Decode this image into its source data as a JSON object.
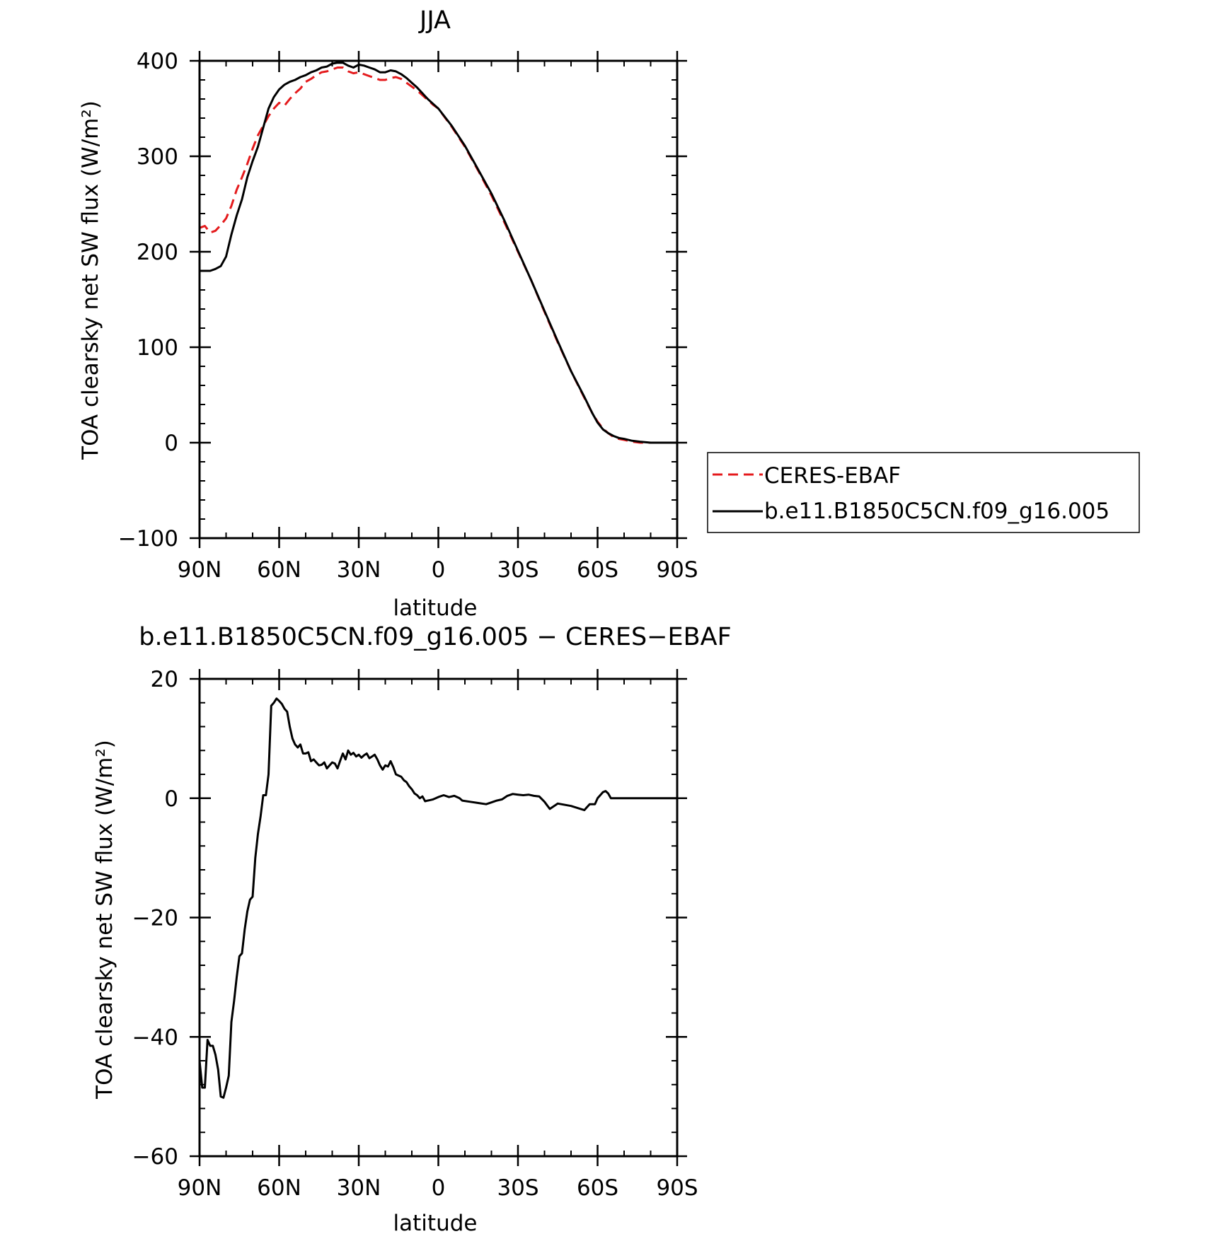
{
  "colors": {
    "background": "#ffffff",
    "axes": "#000000",
    "ceres": "#e41a1c",
    "model": "#000000"
  },
  "chart_data": [
    {
      "type": "line",
      "title": "JJA",
      "xlabel": "latitude",
      "ylabel": "TOA clearsky net SW flux (W/m²)",
      "xticks": [
        "90N",
        "60N",
        "30N",
        "0",
        "30S",
        "60S",
        "90S"
      ],
      "xtick_values": [
        90,
        60,
        30,
        0,
        -30,
        -60,
        -90
      ],
      "xlim": [
        90,
        -90
      ],
      "ylim": [
        -100,
        400
      ],
      "yticks": [
        -100,
        0,
        100,
        200,
        300,
        400
      ],
      "grid": false,
      "legend_position": "right",
      "series": [
        {
          "name": "CERES-EBAF",
          "color": "#e41a1c",
          "style": "dashed",
          "x": [
            90,
            88,
            86,
            84,
            82,
            80,
            78,
            76,
            74,
            72,
            70,
            68,
            66,
            64,
            62,
            60,
            58,
            56,
            54,
            52,
            50,
            48,
            46,
            44,
            42,
            40,
            38,
            36,
            34,
            32,
            30,
            28,
            26,
            24,
            22,
            20,
            18,
            16,
            14,
            12,
            10,
            8,
            6,
            4,
            2,
            0,
            -5,
            -10,
            -15,
            -20,
            -25,
            -30,
            -35,
            -40,
            -45,
            -50,
            -55,
            -58,
            -60,
            -62,
            -64,
            -66,
            -68,
            -70,
            -73,
            -76,
            -80,
            -85,
            -90
          ],
          "y": [
            225,
            227,
            220,
            222,
            228,
            235,
            248,
            265,
            278,
            292,
            308,
            322,
            332,
            342,
            350,
            356,
            353,
            360,
            366,
            371,
            378,
            381,
            385,
            388,
            389,
            391,
            393,
            393,
            389,
            387,
            388,
            386,
            384,
            382,
            380,
            380,
            382,
            383,
            381,
            377,
            373,
            369,
            364,
            359,
            354,
            350,
            331,
            310,
            285,
            259,
            230,
            200,
            170,
            137,
            105,
            75,
            47,
            31,
            22,
            15,
            10,
            6,
            4,
            3,
            1,
            0,
            0,
            0,
            0
          ]
        },
        {
          "name": "b.e11.B1850C5CN.f09_g16.005",
          "color": "#000000",
          "style": "solid",
          "x": [
            90,
            88,
            86,
            84,
            82,
            80,
            78,
            76,
            74,
            72,
            70,
            68,
            66,
            64,
            62,
            60,
            58,
            56,
            54,
            52,
            50,
            48,
            46,
            44,
            42,
            40,
            38,
            36,
            34,
            32,
            30,
            28,
            26,
            24,
            22,
            20,
            18,
            16,
            14,
            12,
            10,
            8,
            6,
            4,
            2,
            0,
            -5,
            -10,
            -15,
            -20,
            -25,
            -30,
            -35,
            -40,
            -45,
            -50,
            -55,
            -58,
            -60,
            -62,
            -64,
            -66,
            -68,
            -70,
            -73,
            -76,
            -80,
            -85,
            -90
          ],
          "y": [
            180,
            180,
            180,
            182,
            185,
            195,
            218,
            238,
            255,
            278,
            295,
            310,
            330,
            350,
            362,
            370,
            375,
            378,
            380,
            383,
            385,
            388,
            390,
            393,
            394,
            397,
            398,
            398,
            395,
            393,
            396,
            395,
            393,
            391,
            388,
            388,
            390,
            389,
            386,
            382,
            377,
            372,
            366,
            360,
            355,
            350,
            332,
            311,
            286,
            261,
            232,
            201,
            170,
            138,
            106,
            75,
            48,
            31,
            21,
            14,
            10,
            7,
            5,
            4,
            2,
            1,
            0,
            0,
            0
          ]
        }
      ]
    },
    {
      "type": "line",
      "title": "b.e11.B1850C5CN.f09_g16.005 − CERES−EBAF",
      "xlabel": "latitude",
      "ylabel": "TOA clearsky net SW flux (W/m²)",
      "xticks": [
        "90N",
        "60N",
        "30N",
        "0",
        "30S",
        "60S",
        "90S"
      ],
      "xtick_values": [
        90,
        60,
        30,
        0,
        -30,
        -60,
        -90
      ],
      "xlim": [
        90,
        -90
      ],
      "ylim": [
        -60,
        20
      ],
      "yticks": [
        -60,
        -40,
        -20,
        0,
        20
      ],
      "grid": false,
      "series": [
        {
          "color": "#000000",
          "style": "solid",
          "x": [
            90,
            89,
            88,
            87,
            86,
            85,
            84,
            83,
            82,
            81,
            80,
            79,
            78,
            77,
            76,
            75,
            74,
            73,
            72,
            71,
            70,
            69,
            68,
            67,
            66,
            65,
            64,
            63,
            62,
            61,
            60,
            59,
            58,
            57,
            56,
            55,
            54,
            53,
            52,
            51,
            50,
            49,
            48,
            47,
            46,
            45,
            44,
            43,
            42,
            41,
            40,
            39,
            38,
            37,
            36,
            35,
            34,
            33,
            32,
            31,
            30,
            29,
            28,
            27,
            26,
            25,
            24,
            23,
            22,
            21,
            20,
            19,
            18,
            17,
            16,
            15,
            14,
            13,
            12,
            11,
            10,
            9,
            8,
            7,
            6,
            5,
            4,
            3,
            2,
            1,
            0,
            -2,
            -4,
            -6,
            -8,
            -9,
            -12,
            -15,
            -18,
            -20,
            -22,
            -24,
            -26,
            -28,
            -30,
            -32,
            -34,
            -36,
            -38,
            -40,
            -42,
            -45,
            -50,
            -55,
            -57,
            -59,
            -60,
            -61,
            -62,
            -63,
            -64,
            -65,
            -66,
            -68,
            -70,
            -72,
            -74,
            -76,
            -78,
            -80,
            -85,
            -90
          ],
          "y": [
            -44,
            -48.5,
            -48.5,
            -40.5,
            -41.5,
            -41.5,
            -43,
            -45.5,
            -50,
            -50.2,
            -48.5,
            -46.5,
            -37.5,
            -34,
            -30,
            -26.5,
            -26,
            -22,
            -19,
            -17,
            -16.5,
            -10,
            -6,
            -3,
            0.5,
            0.5,
            4,
            15.5,
            16,
            16.7,
            16.3,
            15.8,
            15,
            14.5,
            12,
            10,
            9,
            8.5,
            9,
            7.5,
            7.5,
            7.7,
            6.2,
            6.5,
            6,
            5.5,
            5.6,
            6,
            5,
            5.5,
            6,
            5.8,
            5,
            6.3,
            7.5,
            6.5,
            8,
            7.3,
            7.6,
            7,
            7.3,
            6.8,
            7.2,
            7.5,
            6.7,
            7,
            7.3,
            6.5,
            5.5,
            4.8,
            5.5,
            5.3,
            6.2,
            5.2,
            4,
            3.8,
            3.6,
            3,
            2.7,
            2,
            1.5,
            0.8,
            0.5,
            0,
            0.3,
            -0.5,
            -0.4,
            -0.3,
            -0.2,
            0,
            0.2,
            0.5,
            0.2,
            0.4,
            0,
            -0.4,
            -0.6,
            -0.8,
            -1,
            -0.7,
            -0.4,
            -0.2,
            0.4,
            0.7,
            0.6,
            0.5,
            0.6,
            0.4,
            0.3,
            -0.6,
            -1.8,
            -0.9,
            -1.3,
            -2,
            -1,
            -1,
            0,
            0.5,
            1,
            1.2,
            0.8,
            0,
            0,
            0,
            0,
            0,
            0,
            0,
            0,
            0,
            0,
            0
          ]
        }
      ]
    }
  ]
}
